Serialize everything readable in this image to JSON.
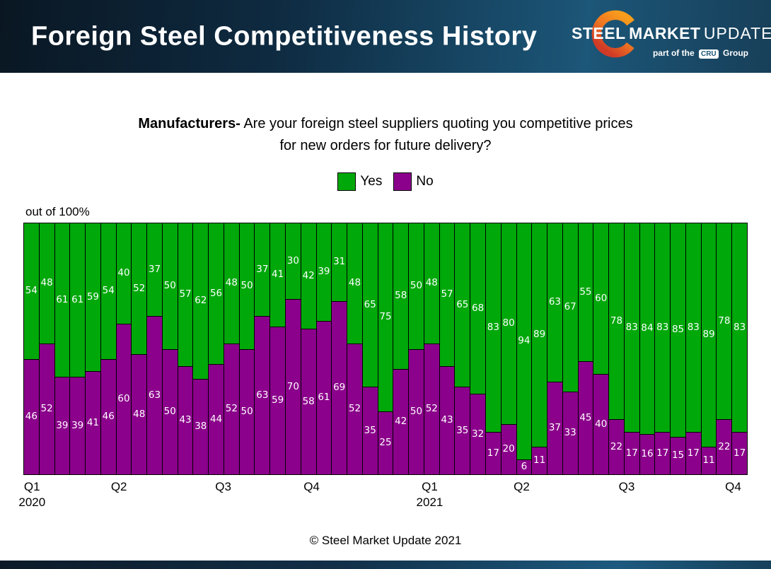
{
  "header": {
    "title": "Foreign Steel Competitiveness History",
    "logo": {
      "brand_bold_1": "STEEL",
      "brand_bold_2": "MARKET",
      "brand_light": "UPDATE",
      "tagline_prefix": "part of the",
      "tagline_badge": "CRU",
      "tagline_suffix": "Group"
    }
  },
  "question": {
    "lead": "Manufacturers-",
    "rest": " Are your foreign steel suppliers quoting you competitive prices for new orders for future delivery?"
  },
  "axis_note": "out of 100%",
  "copyright": "© Steel Market Update 2021",
  "chart_data": {
    "type": "bar",
    "subtype": "stacked-100-percent",
    "title": "Manufacturers- Are your foreign steel suppliers quoting you competitive prices for new orders for future delivery?",
    "ylabel": "out of 100%",
    "ylim": [
      0,
      100
    ],
    "grid": false,
    "legend_position": "top-center",
    "bar_count": 47,
    "series": [
      {
        "name": "Yes",
        "color": "#00A80A",
        "values": [
          54,
          48,
          61,
          61,
          59,
          54,
          40,
          52,
          37,
          50,
          57,
          62,
          56,
          48,
          50,
          37,
          41,
          30,
          42,
          39,
          31,
          48,
          65,
          75,
          58,
          50,
          48,
          57,
          65,
          68,
          83,
          80,
          94,
          89,
          63,
          67,
          55,
          60,
          78,
          83,
          84,
          83,
          85,
          83,
          89,
          78,
          83
        ]
      },
      {
        "name": "No",
        "color": "#8B018B",
        "values": [
          46,
          52,
          39,
          39,
          41,
          46,
          60,
          48,
          63,
          50,
          43,
          38,
          44,
          52,
          50,
          63,
          59,
          70,
          58,
          61,
          69,
          52,
          35,
          25,
          42,
          50,
          52,
          43,
          35,
          32,
          17,
          20,
          6,
          11,
          37,
          33,
          45,
          40,
          22,
          17,
          16,
          17,
          15,
          17,
          11,
          22,
          17
        ]
      }
    ],
    "x_axis_quarters": [
      {
        "label": "Q1",
        "year": "2020",
        "pos_pct": 1.2
      },
      {
        "label": "Q2",
        "pos_pct": 13.2
      },
      {
        "label": "Q3",
        "pos_pct": 27.6
      },
      {
        "label": "Q4",
        "pos_pct": 39.8
      },
      {
        "label": "Q1",
        "year": "2021",
        "pos_pct": 56.1
      },
      {
        "label": "Q2",
        "pos_pct": 68.8
      },
      {
        "label": "Q3",
        "pos_pct": 83.3
      },
      {
        "label": "Q4",
        "pos_pct": 98.0
      }
    ]
  }
}
